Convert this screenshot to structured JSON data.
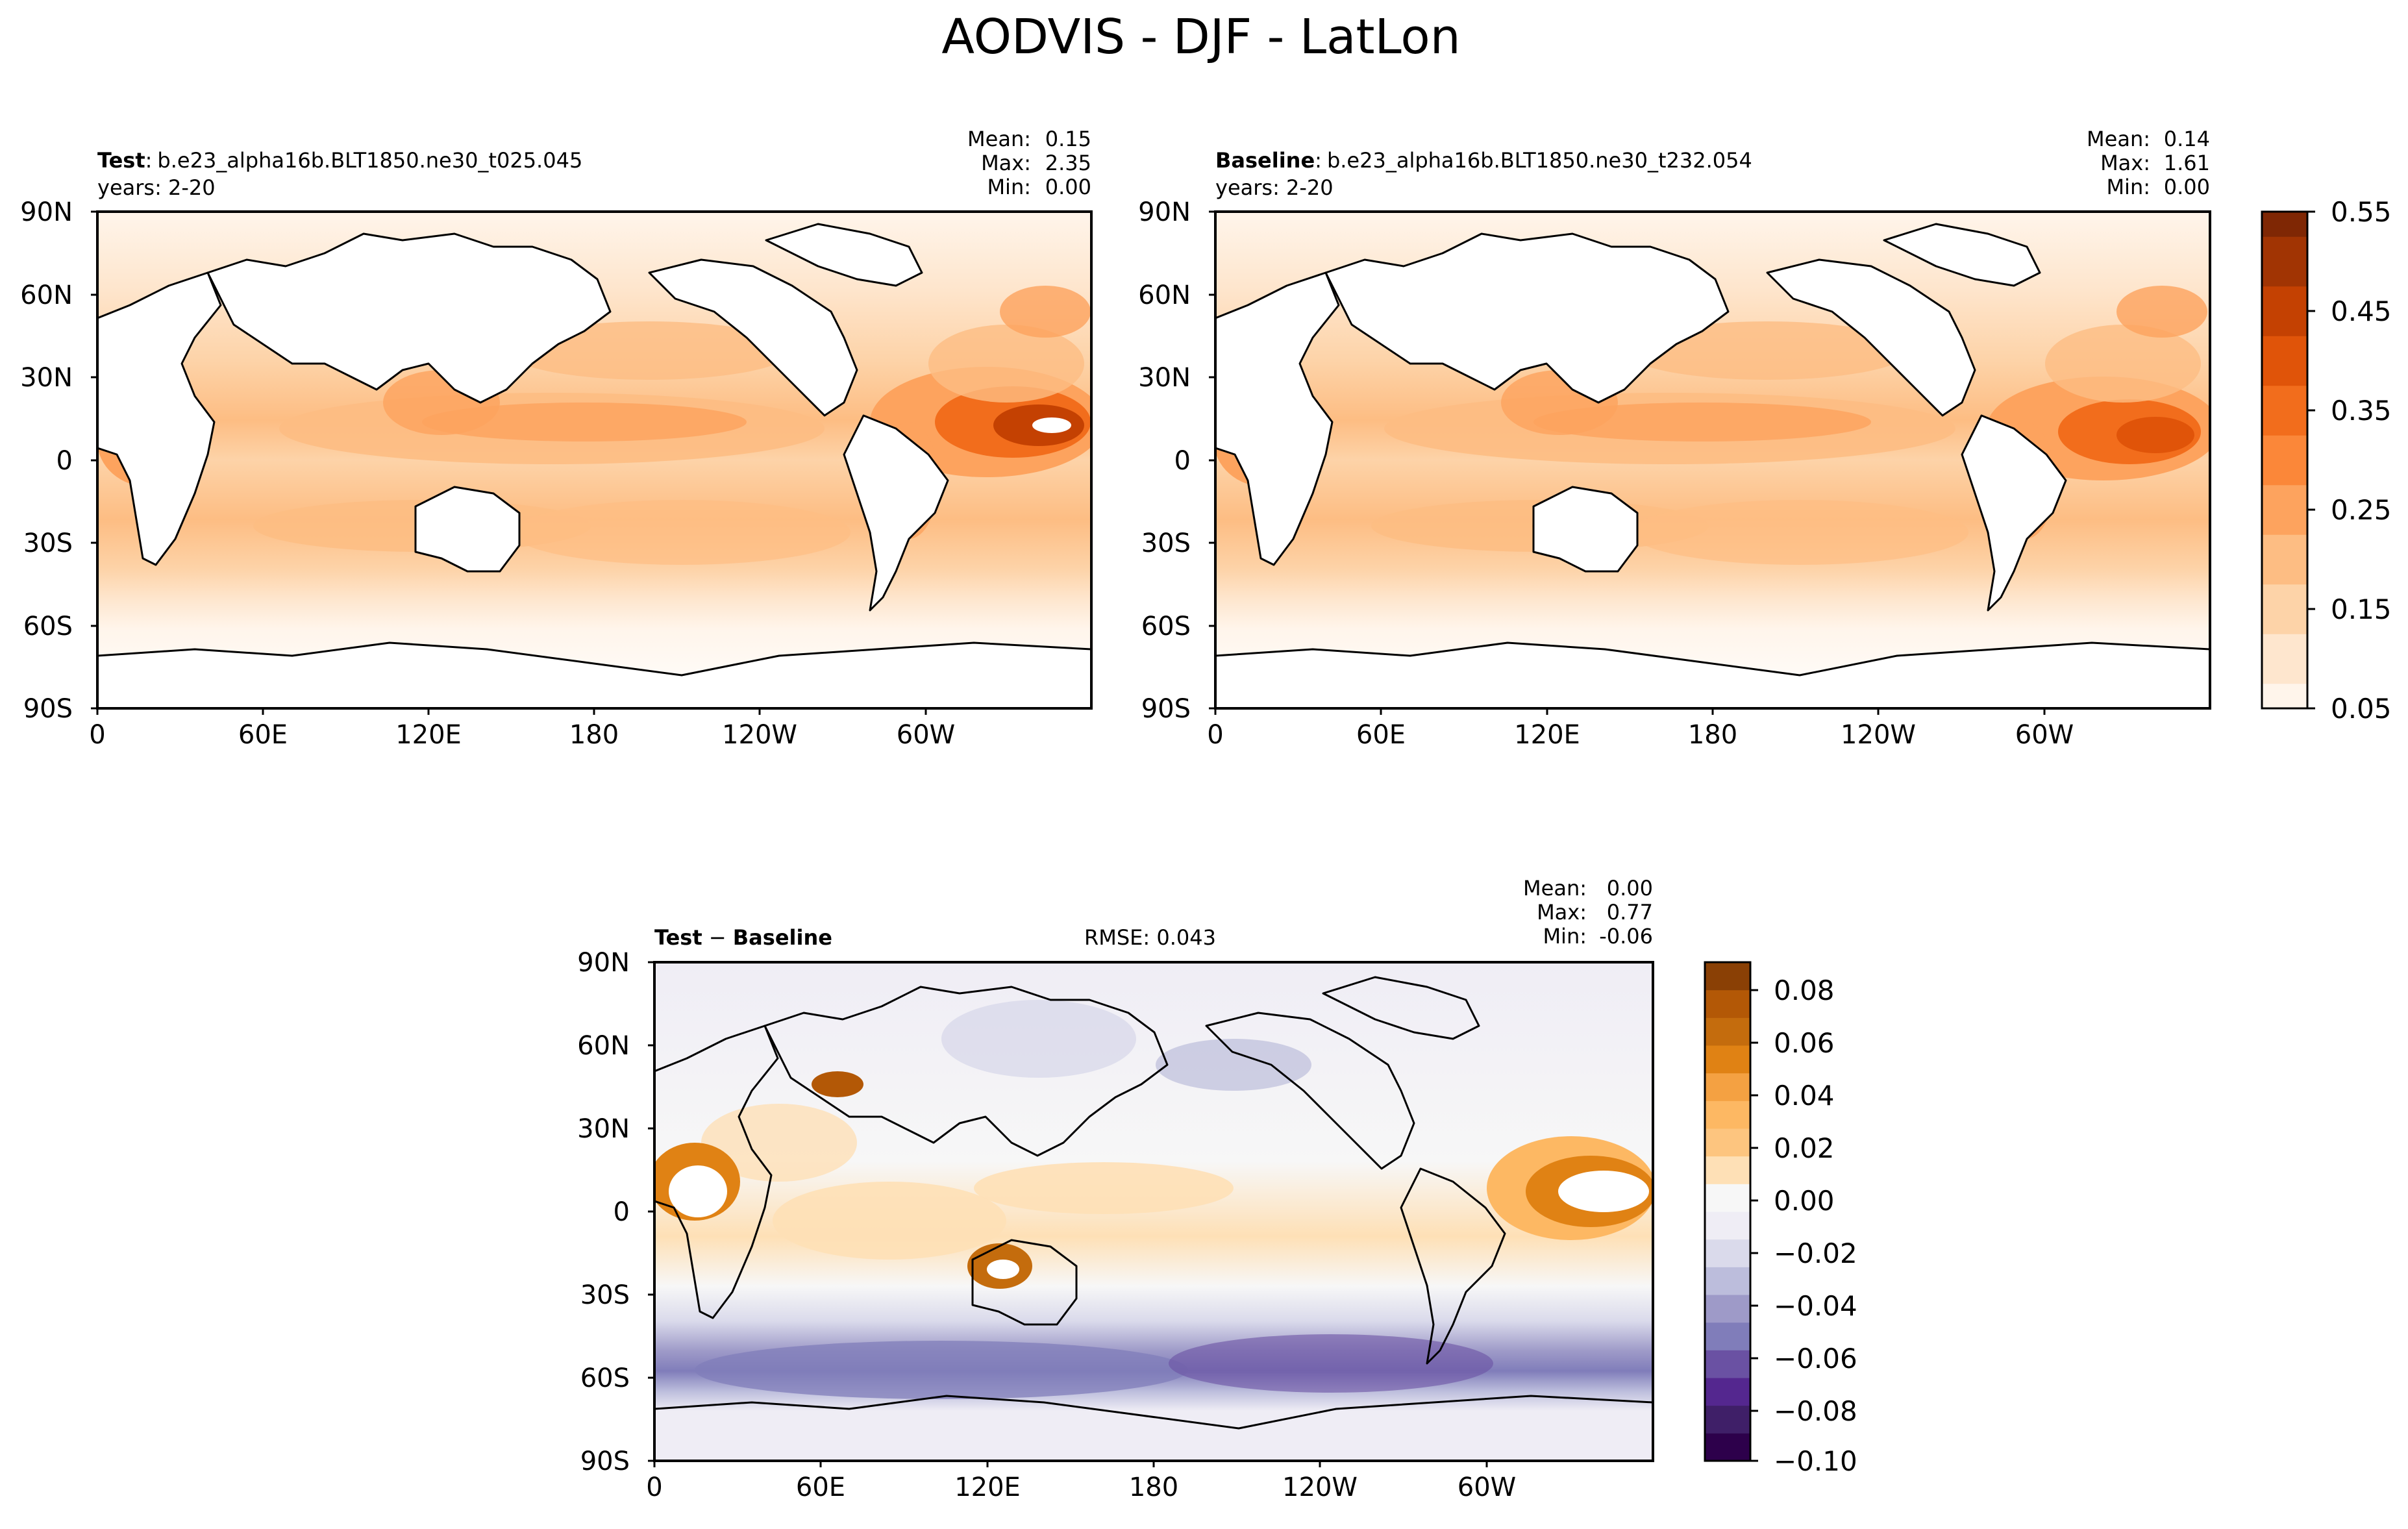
{
  "figure": {
    "title": "AODVIS - DJF - LatLon"
  },
  "colors": {
    "oranges": [
      "#fff5eb",
      "#fee6ce",
      "#fdd3a8",
      "#fdbd83",
      "#fda35e",
      "#fb8739",
      "#f26d1c",
      "#e05409",
      "#c44102",
      "#a13403",
      "#7f2704"
    ],
    "puor": [
      "#2d004b",
      "#3f1f68",
      "#54278f",
      "#6a51a3",
      "#807dba",
      "#9e9ac8",
      "#bcbddc",
      "#dadaeb",
      "#efedf5",
      "#f7f7f7",
      "#fee0b6",
      "#fdc57f",
      "#fdb863",
      "#f4a142",
      "#e08214",
      "#c46c0d",
      "#b35806",
      "#8a4005"
    ]
  },
  "chart_data": [
    {
      "type": "heatmap",
      "name": "test",
      "title_bold": "Test",
      "title_sep": ":",
      "case": "b.e23_alpha16b.BLT1850.ne30_t025.045",
      "years": "years: 2-20",
      "stats": [
        {
          "label": "Mean:",
          "value": "0.15"
        },
        {
          "label": "Max:",
          "value": "2.35"
        },
        {
          "label": "Min:",
          "value": "0.00"
        }
      ],
      "xticks": [
        "0",
        "60E",
        "120E",
        "180",
        "120W",
        "60W"
      ],
      "yticks": [
        "90N",
        "60N",
        "30N",
        "0",
        "30S",
        "60S",
        "90S"
      ],
      "xlim": [
        0,
        360
      ],
      "ylim": [
        -90,
        90
      ],
      "field": "test"
    },
    {
      "type": "heatmap",
      "name": "baseline",
      "title_bold": "Baseline",
      "title_sep": ":",
      "case": "b.e23_alpha16b.BLT1850.ne30_t232.054",
      "years": "years: 2-20",
      "stats": [
        {
          "label": "Mean:",
          "value": "0.14"
        },
        {
          "label": "Max:",
          "value": "1.61"
        },
        {
          "label": "Min:",
          "value": "0.00"
        }
      ],
      "xticks": [
        "0",
        "60E",
        "120E",
        "180",
        "120W",
        "60W"
      ],
      "yticks": [
        "90N",
        "60N",
        "30N",
        "0",
        "30S",
        "60S",
        "90S"
      ],
      "xlim": [
        0,
        360
      ],
      "ylim": [
        -90,
        90
      ],
      "field": "baseline",
      "colorbar": {
        "ticks": [
          "0.55",
          "0.45",
          "0.35",
          "0.25",
          "0.15",
          "0.05"
        ],
        "range": [
          0.05,
          0.55
        ],
        "levels": [
          0.05,
          0.075,
          0.1,
          0.125,
          0.15,
          0.175,
          0.2,
          0.225,
          0.25,
          0.275,
          0.3,
          0.325,
          0.35,
          0.375,
          0.4,
          0.425,
          0.45,
          0.475,
          0.5,
          0.525,
          0.55
        ]
      }
    },
    {
      "type": "heatmap",
      "name": "difference",
      "title_bold": "Test",
      "title_mid": " − ",
      "title_bold2": "Baseline",
      "rmse": "RMSE: 0.043",
      "stats": [
        {
          "label": "Mean:",
          "value": "0.00"
        },
        {
          "label": "Max:",
          "value": "0.77"
        },
        {
          "label": "Min:",
          "value": "-0.06"
        }
      ],
      "xticks": [
        "0",
        "60E",
        "120E",
        "180",
        "120W",
        "60W"
      ],
      "yticks": [
        "90N",
        "60N",
        "30N",
        "0",
        "30S",
        "60S",
        "90S"
      ],
      "xlim": [
        0,
        360
      ],
      "ylim": [
        -90,
        90
      ],
      "field": "diff",
      "colorbar": {
        "ticks": [
          "0.08",
          "0.06",
          "0.04",
          "0.02",
          "0.00",
          "−0.02",
          "−0.04",
          "−0.06",
          "−0.08",
          "−0.10"
        ],
        "range": [
          -0.1,
          0.09
        ]
      }
    }
  ]
}
